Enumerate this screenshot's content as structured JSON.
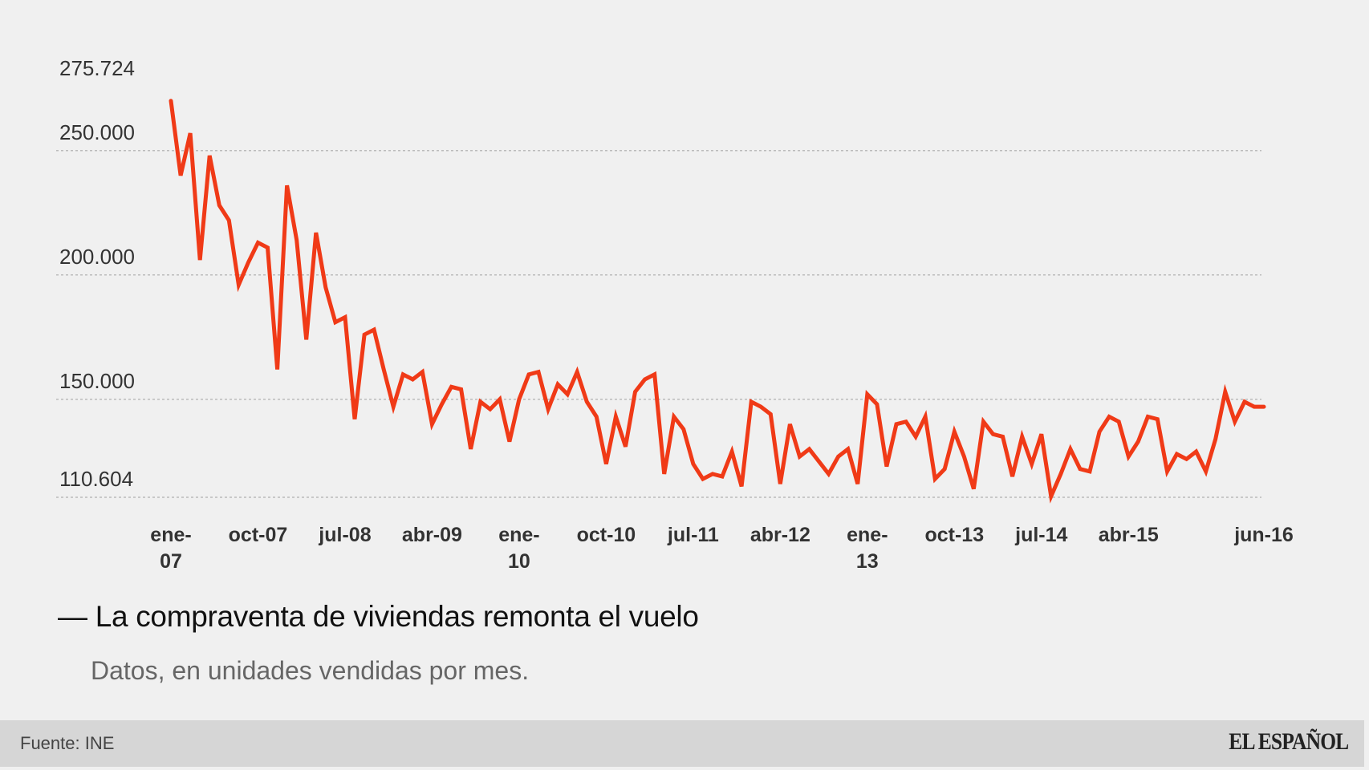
{
  "chart_data": {
    "type": "line",
    "title": "La compraventa de viviendas remonta el vuelo",
    "title_prefix": "—",
    "subtitle": "Datos, en unidades vendidas por mes.",
    "series_color": "#f03a17",
    "grid_color": "#bbbbbb",
    "y_ticks": [
      {
        "value": 275724,
        "label": "275.724",
        "grid": false
      },
      {
        "value": 250000,
        "label": "250.000",
        "grid": true
      },
      {
        "value": 200000,
        "label": "200.000",
        "grid": true
      },
      {
        "value": 150000,
        "label": "150.000",
        "grid": true
      },
      {
        "value": 110604,
        "label": "110.604",
        "grid": true
      }
    ],
    "ylim": [
      110604,
      275724
    ],
    "x_ticks": [
      {
        "index": 0,
        "lines": [
          "ene-",
          "07"
        ]
      },
      {
        "index": 9,
        "lines": [
          "oct-07"
        ]
      },
      {
        "index": 18,
        "lines": [
          "jul-08"
        ]
      },
      {
        "index": 27,
        "lines": [
          "abr-09"
        ]
      },
      {
        "index": 36,
        "lines": [
          "ene-",
          "10"
        ]
      },
      {
        "index": 45,
        "lines": [
          "oct-10"
        ]
      },
      {
        "index": 54,
        "lines": [
          "jul-11"
        ]
      },
      {
        "index": 63,
        "lines": [
          "abr-12"
        ]
      },
      {
        "index": 72,
        "lines": [
          "ene-",
          "13"
        ]
      },
      {
        "index": 81,
        "lines": [
          "oct-13"
        ]
      },
      {
        "index": 90,
        "lines": [
          "jul-14"
        ]
      },
      {
        "index": 99,
        "lines": [
          "abr-15"
        ]
      },
      {
        "index": 113,
        "lines": [
          "jun-16"
        ]
      }
    ],
    "x_start": "ene-07",
    "x_end": "jun-16",
    "values": [
      270000,
      240000,
      257000,
      206000,
      248000,
      228000,
      222000,
      196000,
      205000,
      213000,
      211000,
      162000,
      236000,
      214000,
      174000,
      217000,
      195000,
      181000,
      183000,
      142000,
      176000,
      178000,
      162000,
      147000,
      160000,
      158000,
      161000,
      140000,
      148000,
      155000,
      154000,
      130000,
      149000,
      146000,
      150000,
      133000,
      150000,
      160000,
      161000,
      146000,
      156000,
      152000,
      161000,
      149000,
      143000,
      124000,
      143000,
      131000,
      153000,
      158000,
      160000,
      120000,
      143000,
      138000,
      124000,
      118000,
      120000,
      119000,
      129000,
      115000,
      149000,
      147000,
      144000,
      116000,
      140000,
      127000,
      130000,
      125000,
      120000,
      127000,
      130000,
      116000,
      152000,
      148000,
      123000,
      140000,
      141000,
      135000,
      143000,
      118000,
      122000,
      137000,
      127000,
      114000,
      141000,
      136000,
      135000,
      119000,
      135000,
      124000,
      136000,
      111000,
      120000,
      130000,
      122000,
      121000,
      137000,
      143000,
      141000,
      127000,
      133000,
      143000,
      142000,
      121000,
      128000,
      126000,
      129000,
      121000,
      134000,
      153000,
      141000,
      149000,
      147000,
      147000
    ]
  },
  "footer": {
    "source": "Fuente: INE",
    "brand": "EL ESPAÑOL"
  }
}
